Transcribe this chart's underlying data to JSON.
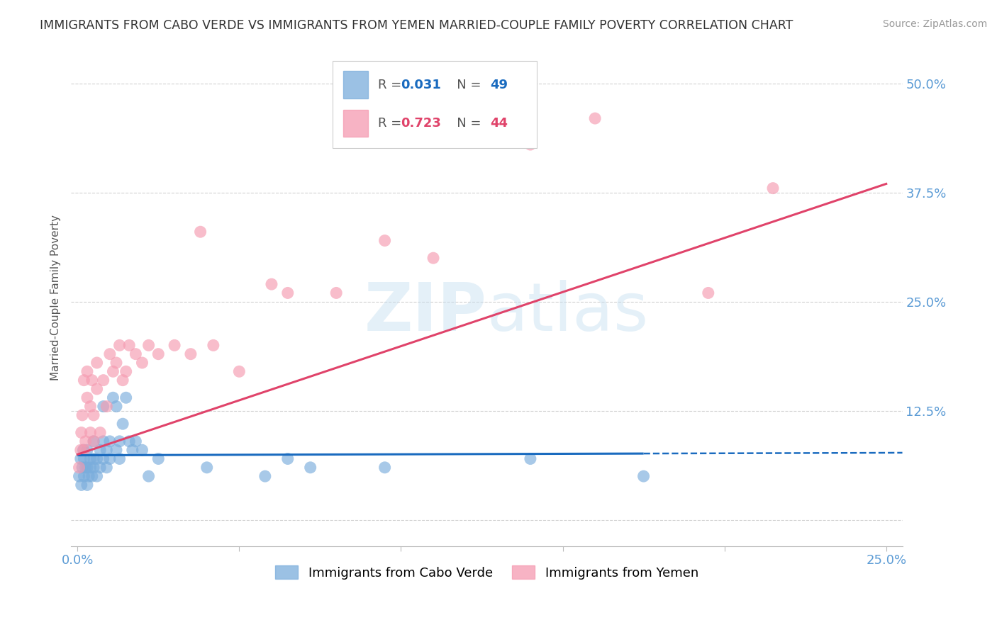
{
  "title": "IMMIGRANTS FROM CABO VERDE VS IMMIGRANTS FROM YEMEN MARRIED-COUPLE FAMILY POVERTY CORRELATION CHART",
  "source": "Source: ZipAtlas.com",
  "ylabel": "Married-Couple Family Poverty",
  "xlim": [
    -0.002,
    0.255
  ],
  "ylim": [
    -0.03,
    0.54
  ],
  "xticks": [
    0.0,
    0.05,
    0.1,
    0.15,
    0.2,
    0.25
  ],
  "xticklabels": [
    "0.0%",
    "",
    "",
    "",
    "",
    "25.0%"
  ],
  "yticks": [
    0.0,
    0.125,
    0.25,
    0.375,
    0.5
  ],
  "yticklabels": [
    "",
    "12.5%",
    "25.0%",
    "37.5%",
    "50.0%"
  ],
  "cabo_verde_R": 0.031,
  "cabo_verde_N": 49,
  "yemen_R": 0.723,
  "yemen_N": 44,
  "cabo_verde_color": "#7aaddc",
  "yemen_color": "#f59ab0",
  "cabo_verde_line_color": "#1a6bbf",
  "yemen_line_color": "#e0436a",
  "cabo_verde_x": [
    0.0005,
    0.001,
    0.0012,
    0.0015,
    0.0018,
    0.002,
    0.002,
    0.0025,
    0.003,
    0.003,
    0.003,
    0.0035,
    0.004,
    0.004,
    0.0045,
    0.005,
    0.005,
    0.005,
    0.006,
    0.006,
    0.007,
    0.007,
    0.008,
    0.008,
    0.008,
    0.009,
    0.009,
    0.01,
    0.01,
    0.011,
    0.012,
    0.012,
    0.013,
    0.013,
    0.014,
    0.015,
    0.016,
    0.017,
    0.018,
    0.02,
    0.022,
    0.025,
    0.04,
    0.058,
    0.065,
    0.072,
    0.095,
    0.14,
    0.175
  ],
  "cabo_verde_y": [
    0.05,
    0.07,
    0.04,
    0.06,
    0.08,
    0.05,
    0.07,
    0.06,
    0.04,
    0.06,
    0.08,
    0.05,
    0.06,
    0.07,
    0.05,
    0.06,
    0.07,
    0.09,
    0.05,
    0.07,
    0.08,
    0.06,
    0.07,
    0.09,
    0.13,
    0.06,
    0.08,
    0.07,
    0.09,
    0.14,
    0.08,
    0.13,
    0.07,
    0.09,
    0.11,
    0.14,
    0.09,
    0.08,
    0.09,
    0.08,
    0.05,
    0.07,
    0.06,
    0.05,
    0.07,
    0.06,
    0.06,
    0.07,
    0.05
  ],
  "yemen_x": [
    0.0005,
    0.001,
    0.0012,
    0.0015,
    0.002,
    0.002,
    0.0025,
    0.003,
    0.003,
    0.004,
    0.004,
    0.0045,
    0.005,
    0.005,
    0.006,
    0.006,
    0.007,
    0.008,
    0.009,
    0.01,
    0.011,
    0.012,
    0.013,
    0.014,
    0.015,
    0.016,
    0.018,
    0.02,
    0.022,
    0.025,
    0.03,
    0.035,
    0.038,
    0.042,
    0.05,
    0.06,
    0.065,
    0.08,
    0.095,
    0.11,
    0.14,
    0.16,
    0.195,
    0.215
  ],
  "yemen_y": [
    0.06,
    0.08,
    0.1,
    0.12,
    0.08,
    0.16,
    0.09,
    0.14,
    0.17,
    0.1,
    0.13,
    0.16,
    0.09,
    0.12,
    0.15,
    0.18,
    0.1,
    0.16,
    0.13,
    0.19,
    0.17,
    0.18,
    0.2,
    0.16,
    0.17,
    0.2,
    0.19,
    0.18,
    0.2,
    0.19,
    0.2,
    0.19,
    0.33,
    0.2,
    0.17,
    0.27,
    0.26,
    0.26,
    0.32,
    0.3,
    0.43,
    0.46,
    0.26,
    0.38
  ],
  "cabo_verde_line_x": [
    0.0,
    0.175
  ],
  "cabo_verde_line_y": [
    0.074,
    0.076
  ],
  "yemen_line_x": [
    0.0,
    0.25
  ],
  "yemen_line_y": [
    0.075,
    0.385
  ],
  "background_color": "#ffffff",
  "grid_color": "#d0d0d0",
  "title_color": "#333333",
  "tick_color_right": "#5b9bd5",
  "tick_color_x": "#5b9bd5",
  "watermark": "ZIPatlas"
}
